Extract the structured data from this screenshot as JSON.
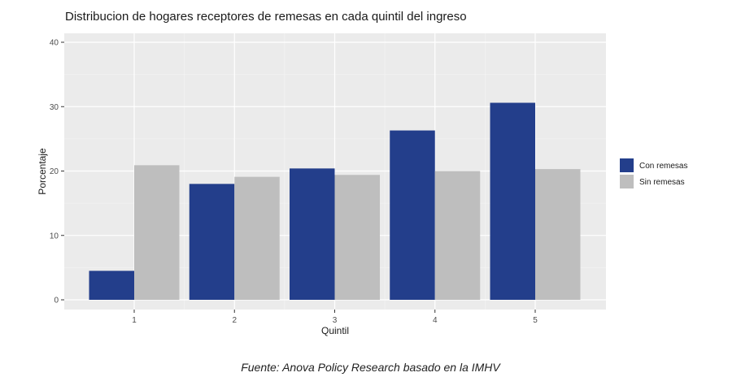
{
  "chart_data": {
    "type": "bar",
    "title": "Distribucion de hogares receptores de remesas en cada quintil del ingreso",
    "xlabel": "Quintil",
    "ylabel": "Porcentaje",
    "categories": [
      "1",
      "2",
      "3",
      "4",
      "5"
    ],
    "series": [
      {
        "name": "Con remesas",
        "color": "#233E8B",
        "values": [
          4.5,
          18.0,
          20.4,
          26.3,
          30.6
        ]
      },
      {
        "name": "Sin remesas",
        "color": "#BEBEBE",
        "values": [
          20.9,
          19.1,
          19.4,
          20.0,
          20.3
        ]
      }
    ],
    "ylim": [
      0,
      40
    ],
    "yticks": [
      0,
      10,
      20,
      30,
      40
    ],
    "grid": true,
    "legend_position": "right",
    "panel_background": "#EBEBEB"
  },
  "source_note": "Fuente: Anova Policy Research basado en la IMHV"
}
